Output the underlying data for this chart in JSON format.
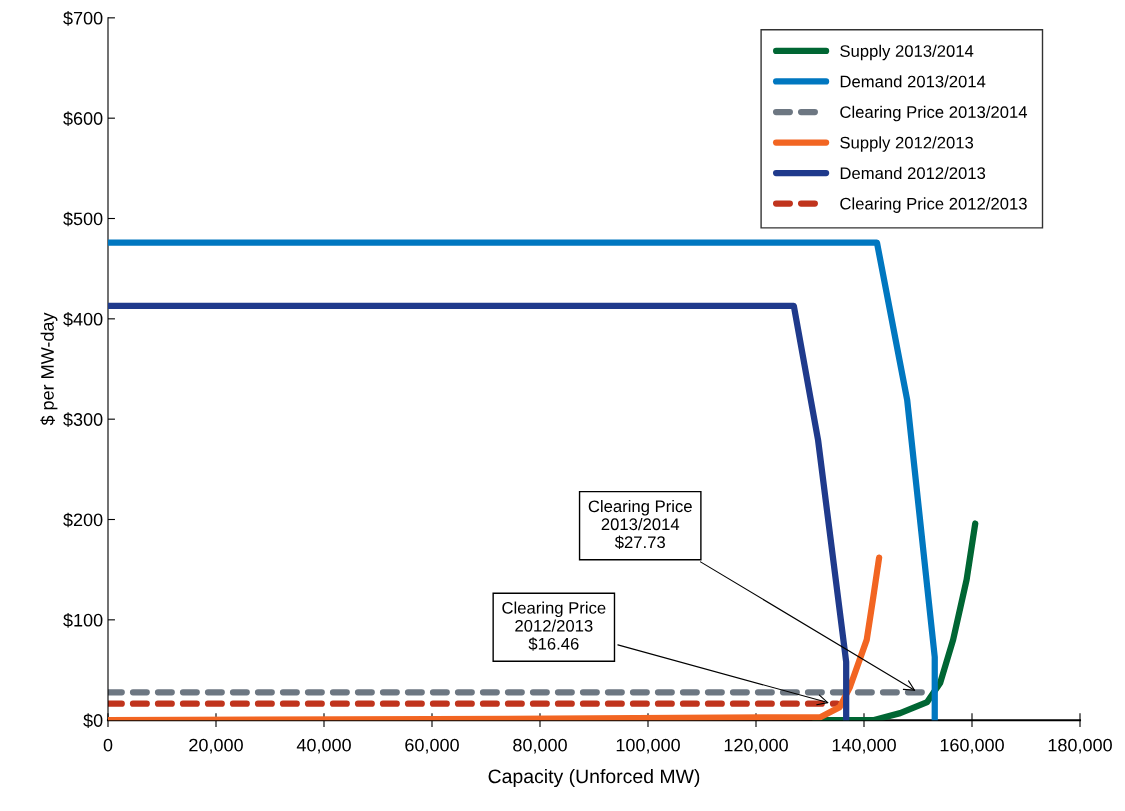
{
  "chart_data": {
    "type": "line",
    "xlabel": "Capacity (Unforced MW)",
    "ylabel": "$ per MW-day",
    "series": [
      {
        "name": "Supply 2013/2014",
        "color": "#006633",
        "x": [
          131000,
          141700,
          146700,
          151700,
          154100,
          156500,
          159000,
          160600
        ],
        "values": [
          0,
          0,
          7,
          18,
          37,
          80,
          140,
          196
        ]
      },
      {
        "name": "Demand 2013/2014",
        "color": "#0077c0",
        "x": [
          0,
          142400,
          148000,
          153100,
          153100
        ],
        "values": [
          476,
          476,
          319,
          63,
          0
        ]
      },
      {
        "name": "Clearing Price 2013/2014",
        "color": "#6d7782",
        "line_style": "dashed",
        "x": [
          0,
          152700
        ],
        "values": [
          27.73,
          27.73
        ]
      },
      {
        "name": "Supply 2012/2013",
        "color": "#f26522",
        "x": [
          0,
          60000,
          131900,
          135500,
          137400,
          140500,
          141700,
          142800
        ],
        "values": [
          0,
          1,
          3,
          13,
          33,
          80,
          122,
          162
        ]
      },
      {
        "name": "Demand 2012/2013",
        "color": "#1f3a8c",
        "x": [
          0,
          127000,
          131500,
          136700,
          136700
        ],
        "values": [
          413,
          413,
          279,
          58,
          0
        ]
      },
      {
        "name": "Clearing Price 2012/2013",
        "color": "#c0341d",
        "line_style": "dashed",
        "x": [
          0,
          135000
        ],
        "values": [
          16.46,
          16.46
        ]
      }
    ],
    "annotations": [
      {
        "text": "Clearing Price\n2013/2014\n$27.73",
        "x": 150000,
        "y": 27.73
      },
      {
        "text": "Clearing Price\n2012/2013\n$16.46",
        "x": 134000,
        "y": 16.46
      }
    ],
    "xlim": [
      0,
      180000
    ],
    "xticks": [
      0,
      {
        "value": 20000,
        "label": "20,000"
      },
      {
        "value": 40000,
        "label": "40,000"
      },
      {
        "value": 60000,
        "label": "60,000"
      },
      {
        "value": 80000,
        "label": "80,000"
      },
      {
        "value": 100000,
        "label": "100,000"
      },
      {
        "value": 120000,
        "label": "120,000"
      },
      {
        "value": 140000,
        "label": "140,000"
      },
      {
        "value": 160000,
        "label": "160,000"
      },
      {
        "value": 180000,
        "label": "180,000"
      }
    ],
    "ylim": [
      0,
      700
    ],
    "yticks": [
      {
        "value": 0,
        "label": "$0"
      },
      {
        "value": 100,
        "label": "$100"
      },
      {
        "value": 200,
        "label": "$200"
      },
      {
        "value": 300,
        "label": "$300"
      },
      {
        "value": 400,
        "label": "$400"
      },
      {
        "value": 500,
        "label": "$500"
      },
      {
        "value": 600,
        "label": "$600"
      },
      {
        "value": 700,
        "label": "$700"
      }
    ],
    "grid": false,
    "legend": "top right",
    "marker": "none",
    "line_style": "solid"
  }
}
